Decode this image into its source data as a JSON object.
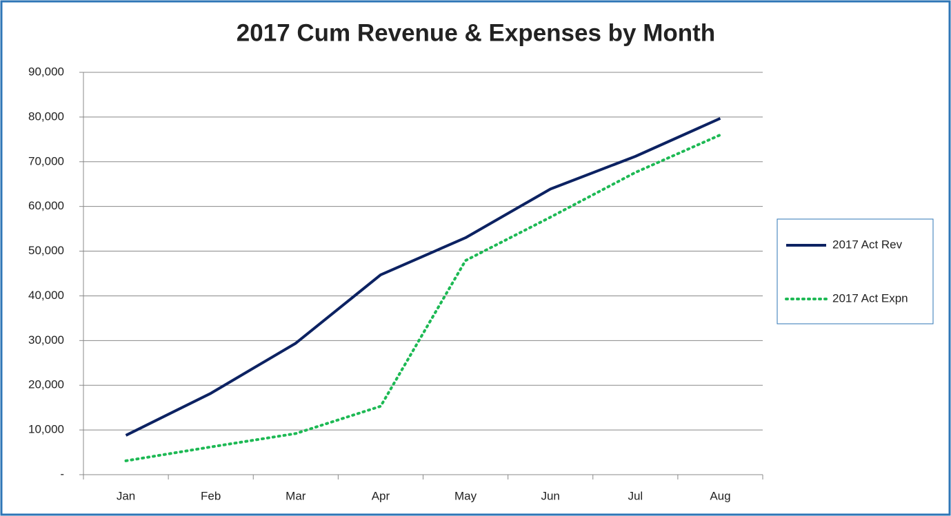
{
  "chart_data": {
    "type": "line",
    "title": "2017 Cum Revenue & Expenses by Month",
    "categories": [
      "Jan",
      "Feb",
      "Mar",
      "Apr",
      "May",
      "Jun",
      "Jul",
      "Aug"
    ],
    "series": [
      {
        "name": "2017 Act Rev",
        "color": "#0c2262",
        "dash": "solid",
        "values": [
          8800,
          18200,
          29400,
          44700,
          53000,
          63900,
          71200,
          79700
        ]
      },
      {
        "name": "2017 Act Expn",
        "color": "#1db954",
        "dash": "dotted",
        "values": [
          3100,
          6200,
          9200,
          15300,
          47900,
          57600,
          67600,
          76000
        ]
      }
    ],
    "ylim": [
      0,
      90000
    ],
    "yticks": [
      {
        "value": 0,
        "label": "-"
      },
      {
        "value": 10000,
        "label": "10,000"
      },
      {
        "value": 20000,
        "label": "20,000"
      },
      {
        "value": 30000,
        "label": "30,000"
      },
      {
        "value": 40000,
        "label": "40,000"
      },
      {
        "value": 50000,
        "label": "50,000"
      },
      {
        "value": 60000,
        "label": "60,000"
      },
      {
        "value": 70000,
        "label": "70,000"
      },
      {
        "value": 80000,
        "label": "80,000"
      },
      {
        "value": 90000,
        "label": "90,000"
      }
    ],
    "grid": true,
    "legend": "right"
  }
}
